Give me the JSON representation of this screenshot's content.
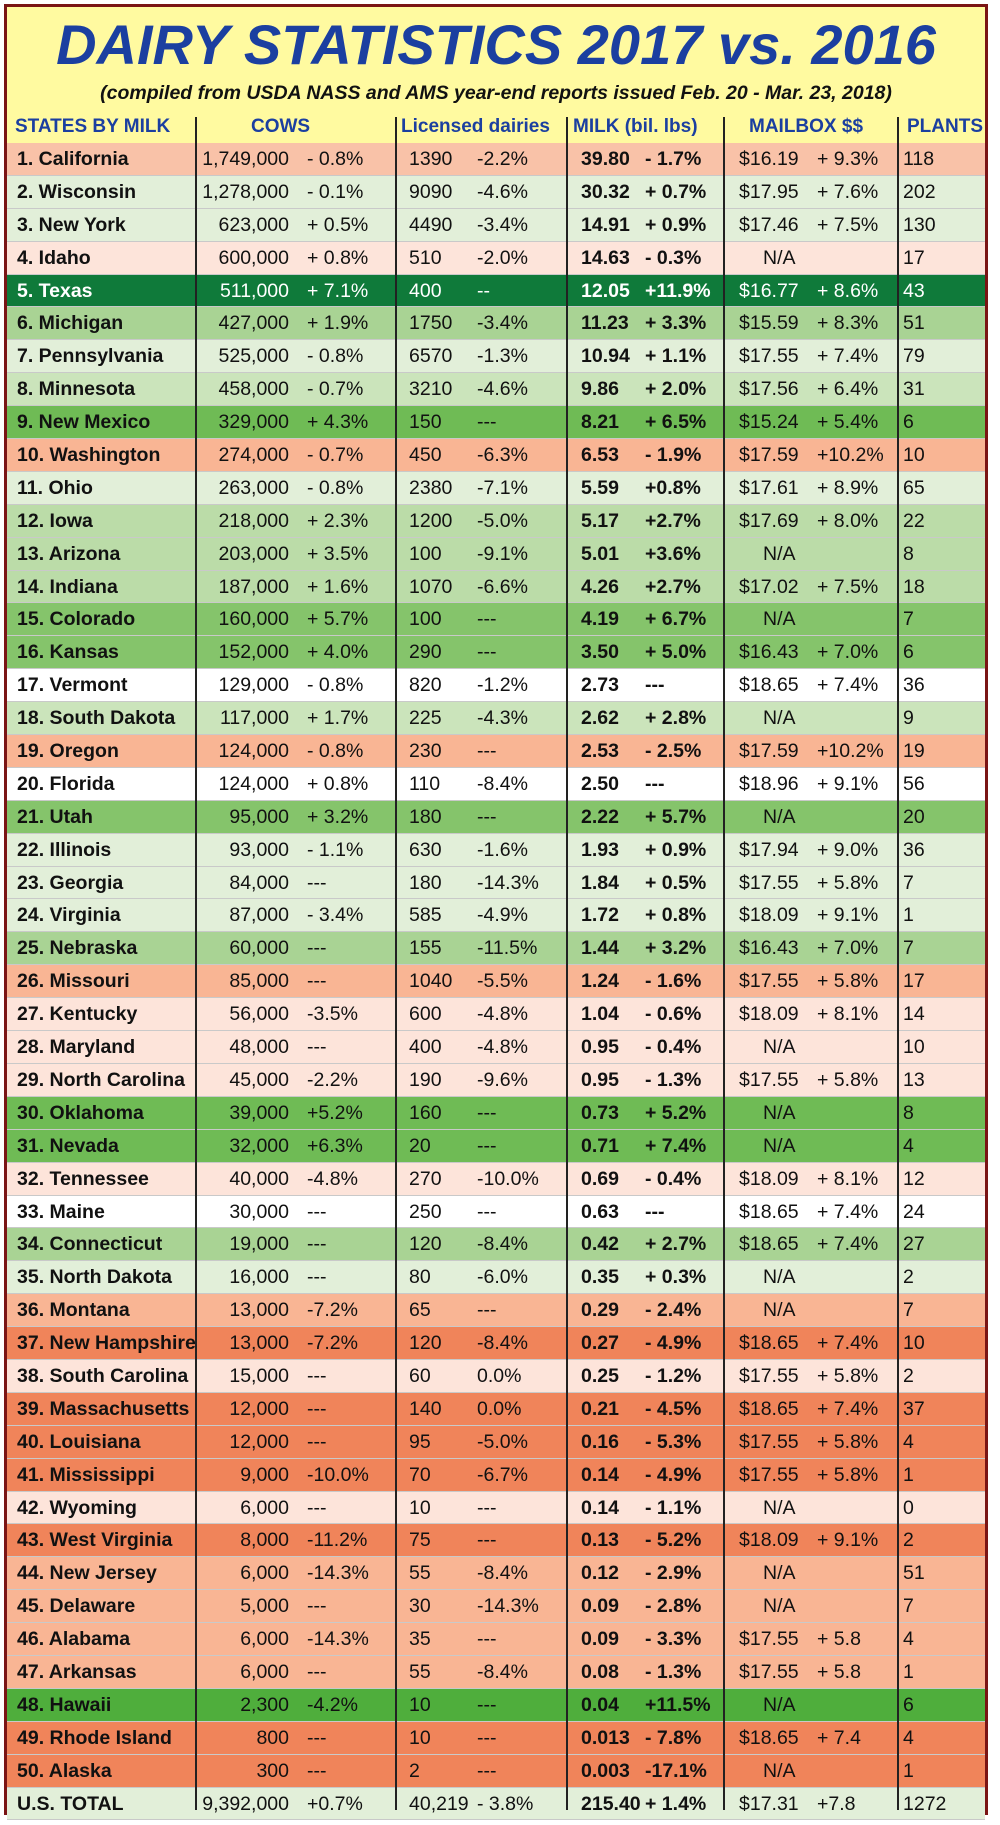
{
  "title": "DAIRY STATISTICS 2017 vs. 2016",
  "subtitle": "(compiled from USDA NASS and AMS year-end reports issued Feb. 20 - Mar. 23, 2018)",
  "headers": {
    "state": "STATES BY MILK",
    "cows": "COWS",
    "licensed": "Licensed dairies",
    "milk": "MILK (bil. lbs)",
    "mailbox": "MAILBOX $$",
    "plants": "PLANTS"
  },
  "colors": {
    "frame_border": "#7a1515",
    "title_blue": "#1b3fa0",
    "background_yellow": "#fffaa0"
  },
  "rows": [
    {
      "state": "1. California",
      "cows": "1,749,000",
      "cows_chg": "- 0.8%",
      "lic": "1390",
      "lic_chg": "-2.2%",
      "milk": "39.80",
      "milk_chg": "- 1.7%",
      "mail": "$16.19",
      "mail_chg": "+ 9.3%",
      "plants": "118",
      "bg": "#f9c2a8"
    },
    {
      "state": "2. Wisconsin",
      "cows": "1,278,000",
      "cows_chg": "- 0.1%",
      "lic": "9090",
      "lic_chg": "-4.6%",
      "milk": "30.32",
      "milk_chg": "+ 0.7%",
      "mail": "$17.95",
      "mail_chg": "+ 7.6%",
      "plants": "202",
      "bg": "#e2efd9"
    },
    {
      "state": "3. New York",
      "cows": "623,000",
      "cows_chg": "+ 0.5%",
      "lic": "4490",
      "lic_chg": "-3.4%",
      "milk": "14.91",
      "milk_chg": "+ 0.9%",
      "mail": "$17.46",
      "mail_chg": "+ 7.5%",
      "plants": "130",
      "bg": "#e2efd9"
    },
    {
      "state": "4. Idaho",
      "cows": "600,000",
      "cows_chg": "+ 0.8%",
      "lic": "510",
      "lic_chg": "-2.0%",
      "milk": "14.63",
      "milk_chg": "- 0.3%",
      "mail": "N/A",
      "mail_chg": "",
      "plants": "17",
      "bg": "#fde4da"
    },
    {
      "state": "5. Texas",
      "cows": "511,000",
      "cows_chg": "+ 7.1%",
      "lic": "400",
      "lic_chg": "--",
      "milk": "12.05",
      "milk_chg": "+11.9%",
      "mail": "$16.77",
      "mail_chg": "+ 8.6%",
      "plants": "43",
      "bg": "#0f7a3a",
      "white": true
    },
    {
      "state": "6. Michigan",
      "cows": "427,000",
      "cows_chg": "+ 1.9%",
      "lic": "1750",
      "lic_chg": "-3.4%",
      "milk": "11.23",
      "milk_chg": "+ 3.3%",
      "mail": "$15.59",
      "mail_chg": "+ 8.3%",
      "plants": "51",
      "bg": "#a9d394"
    },
    {
      "state": "7. Pennsylvania",
      "cows": "525,000",
      "cows_chg": "- 0.8%",
      "lic": "6570",
      "lic_chg": "-1.3%",
      "milk": "10.94",
      "milk_chg": "+ 1.1%",
      "mail": "$17.55",
      "mail_chg": "+ 7.4%",
      "plants": "79",
      "bg": "#e2efd9"
    },
    {
      "state": "8. Minnesota",
      "cows": "458,000",
      "cows_chg": "- 0.7%",
      "lic": "3210",
      "lic_chg": "-4.6%",
      "milk": "9.86",
      "milk_chg": "+ 2.0%",
      "mail": "$17.56",
      "mail_chg": "+ 6.4%",
      "plants": "31",
      "bg": "#cbe4bb"
    },
    {
      "state": "9. New Mexico",
      "cows": "329,000",
      "cows_chg": "+ 4.3%",
      "lic": "150",
      "lic_chg": "---",
      "milk": "8.21",
      "milk_chg": "+ 6.5%",
      "mail": "$15.24",
      "mail_chg": "+ 5.4%",
      "plants": "6",
      "bg": "#6fbb55"
    },
    {
      "state": "10. Washington",
      "cows": "274,000",
      "cows_chg": "- 0.7%",
      "lic": "450",
      "lic_chg": "-6.3%",
      "milk": "6.53",
      "milk_chg": "- 1.9%",
      "mail": "$17.59",
      "mail_chg": "+10.2%",
      "plants": "10",
      "bg": "#f9b594"
    },
    {
      "state": "11. Ohio",
      "cows": "263,000",
      "cows_chg": "- 0.8%",
      "lic": "2380",
      "lic_chg": "-7.1%",
      "milk": "5.59",
      "milk_chg": "+0.8%",
      "mail": "$17.61",
      "mail_chg": "+ 8.9%",
      "plants": "65",
      "bg": "#e2efd9"
    },
    {
      "state": "12. Iowa",
      "cows": "218,000",
      "cows_chg": "+ 2.3%",
      "lic": "1200",
      "lic_chg": "-5.0%",
      "milk": "5.17",
      "milk_chg": "+2.7%",
      "mail": "$17.69",
      "mail_chg": "+ 8.0%",
      "plants": "22",
      "bg": "#bbdca8"
    },
    {
      "state": "13. Arizona",
      "cows": "203,000",
      "cows_chg": "+ 3.5%",
      "lic": "100",
      "lic_chg": "-9.1%",
      "milk": "5.01",
      "milk_chg": "+3.6%",
      "mail": "N/A",
      "mail_chg": "",
      "plants": "8",
      "bg": "#bbdca8"
    },
    {
      "state": "14. Indiana",
      "cows": "187,000",
      "cows_chg": "+ 1.6%",
      "lic": "1070",
      "lic_chg": "-6.6%",
      "milk": "4.26",
      "milk_chg": "+2.7%",
      "mail": "$17.02",
      "mail_chg": "+ 7.5%",
      "plants": "18",
      "bg": "#bbdca8"
    },
    {
      "state": "15. Colorado",
      "cows": "160,000",
      "cows_chg": "+ 5.7%",
      "lic": "100",
      "lic_chg": "---",
      "milk": "4.19",
      "milk_chg": "+ 6.7%",
      "mail": "N/A",
      "mail_chg": "",
      "plants": "7",
      "bg": "#85c46b"
    },
    {
      "state": "16. Kansas",
      "cows": "152,000",
      "cows_chg": "+ 4.0%",
      "lic": "290",
      "lic_chg": "---",
      "milk": "3.50",
      "milk_chg": "+ 5.0%",
      "mail": "$16.43",
      "mail_chg": "+ 7.0%",
      "plants": "6",
      "bg": "#85c46b"
    },
    {
      "state": "17. Vermont",
      "cows": "129,000",
      "cows_chg": "- 0.8%",
      "lic": "820",
      "lic_chg": "-1.2%",
      "milk": "2.73",
      "milk_chg": "---",
      "mail": "$18.65",
      "mail_chg": "+ 7.4%",
      "plants": "36",
      "bg": "#ffffff"
    },
    {
      "state": "18. South Dakota",
      "cows": "117,000",
      "cows_chg": "+ 1.7%",
      "lic": "225",
      "lic_chg": "-4.3%",
      "milk": "2.62",
      "milk_chg": "+ 2.8%",
      "mail": "N/A",
      "mail_chg": "",
      "plants": "9",
      "bg": "#cbe4bb"
    },
    {
      "state": "19. Oregon",
      "cows": "124,000",
      "cows_chg": "- 0.8%",
      "lic": "230",
      "lic_chg": "---",
      "milk": "2.53",
      "milk_chg": "- 2.5%",
      "mail": "$17.59",
      "mail_chg": "+10.2%",
      "plants": "19",
      "bg": "#f9b594"
    },
    {
      "state": "20. Florida",
      "cows": "124,000",
      "cows_chg": "+ 0.8%",
      "lic": "110",
      "lic_chg": "-8.4%",
      "milk": "2.50",
      "milk_chg": "---",
      "mail": "$18.96",
      "mail_chg": "+ 9.1%",
      "plants": "56",
      "bg": "#ffffff"
    },
    {
      "state": "21. Utah",
      "cows": "95,000",
      "cows_chg": "+ 3.2%",
      "lic": "180",
      "lic_chg": "---",
      "milk": "2.22",
      "milk_chg": "+ 5.7%",
      "mail": "N/A",
      "mail_chg": "",
      "plants": "20",
      "bg": "#85c46b"
    },
    {
      "state": "22. Illinois",
      "cows": "93,000",
      "cows_chg": "- 1.1%",
      "lic": "630",
      "lic_chg": "-1.6%",
      "milk": "1.93",
      "milk_chg": "+ 0.9%",
      "mail": "$17.94",
      "mail_chg": "+ 9.0%",
      "plants": "36",
      "bg": "#e2efd9"
    },
    {
      "state": "23. Georgia",
      "cows": "84,000",
      "cows_chg": "---",
      "lic": "180",
      "lic_chg": "-14.3%",
      "milk": "1.84",
      "milk_chg": "+ 0.5%",
      "mail": "$17.55",
      "mail_chg": "+ 5.8%",
      "plants": "7",
      "bg": "#e2efd9"
    },
    {
      "state": "24. Virginia",
      "cows": "87,000",
      "cows_chg": "- 3.4%",
      "lic": "585",
      "lic_chg": "-4.9%",
      "milk": "1.72",
      "milk_chg": "+ 0.8%",
      "mail": "$18.09",
      "mail_chg": "+ 9.1%",
      "plants": "1",
      "bg": "#e2efd9"
    },
    {
      "state": "25. Nebraska",
      "cows": "60,000",
      "cows_chg": "---",
      "lic": "155",
      "lic_chg": "-11.5%",
      "milk": "1.44",
      "milk_chg": "+ 3.2%",
      "mail": "$16.43",
      "mail_chg": "+ 7.0%",
      "plants": "7",
      "bg": "#a9d394"
    },
    {
      "state": "26. Missouri",
      "cows": "85,000",
      "cows_chg": "---",
      "lic": "1040",
      "lic_chg": "-5.5%",
      "milk": "1.24",
      "milk_chg": "- 1.6%",
      "mail": "$17.55",
      "mail_chg": "+ 5.8%",
      "plants": "17",
      "bg": "#f9b594"
    },
    {
      "state": "27. Kentucky",
      "cows": "56,000",
      "cows_chg": "-3.5%",
      "lic": "600",
      "lic_chg": "-4.8%",
      "milk": "1.04",
      "milk_chg": "- 0.6%",
      "mail": "$18.09",
      "mail_chg": "+ 8.1%",
      "plants": "14",
      "bg": "#fde4da"
    },
    {
      "state": "28. Maryland",
      "cows": "48,000",
      "cows_chg": "---",
      "lic": "400",
      "lic_chg": "-4.8%",
      "milk": "0.95",
      "milk_chg": "- 0.4%",
      "mail": "N/A",
      "mail_chg": "",
      "plants": "10",
      "bg": "#fde4da"
    },
    {
      "state": "29. North Carolina",
      "cows": "45,000",
      "cows_chg": "-2.2%",
      "lic": "190",
      "lic_chg": "-9.6%",
      "milk": "0.95",
      "milk_chg": "- 1.3%",
      "mail": "$17.55",
      "mail_chg": "+ 5.8%",
      "plants": "13",
      "bg": "#fde4da"
    },
    {
      "state": "30. Oklahoma",
      "cows": "39,000",
      "cows_chg": "+5.2%",
      "lic": "160",
      "lic_chg": "---",
      "milk": "0.73",
      "milk_chg": "+ 5.2%",
      "mail": "N/A",
      "mail_chg": "",
      "plants": "8",
      "bg": "#6fbb55"
    },
    {
      "state": "31. Nevada",
      "cows": "32,000",
      "cows_chg": "+6.3%",
      "lic": "20",
      "lic_chg": "---",
      "milk": "0.71",
      "milk_chg": "+ 7.4%",
      "mail": "N/A",
      "mail_chg": "",
      "plants": "4",
      "bg": "#6fbb55"
    },
    {
      "state": "32. Tennessee",
      "cows": "40,000",
      "cows_chg": "-4.8%",
      "lic": "270",
      "lic_chg": "-10.0%",
      "milk": "0.69",
      "milk_chg": "- 0.4%",
      "mail": "$18.09",
      "mail_chg": "+ 8.1%",
      "plants": "12",
      "bg": "#fde4da"
    },
    {
      "state": "33. Maine",
      "cows": "30,000",
      "cows_chg": "---",
      "lic": "250",
      "lic_chg": "---",
      "milk": "0.63",
      "milk_chg": "---",
      "mail": "$18.65",
      "mail_chg": "+ 7.4%",
      "plants": "24",
      "bg": "#ffffff"
    },
    {
      "state": "34. Connecticut",
      "cows": "19,000",
      "cows_chg": "---",
      "lic": "120",
      "lic_chg": "-8.4%",
      "milk": "0.42",
      "milk_chg": "+ 2.7%",
      "mail": "$18.65",
      "mail_chg": "+ 7.4%",
      "plants": "27",
      "bg": "#a9d394"
    },
    {
      "state": "35. North Dakota",
      "cows": "16,000",
      "cows_chg": "---",
      "lic": "80",
      "lic_chg": "-6.0%",
      "milk": "0.35",
      "milk_chg": "+ 0.3%",
      "mail": "N/A",
      "mail_chg": "",
      "plants": "2",
      "bg": "#e2efd9"
    },
    {
      "state": "36. Montana",
      "cows": "13,000",
      "cows_chg": "-7.2%",
      "lic": "65",
      "lic_chg": "---",
      "milk": "0.29",
      "milk_chg": "- 2.4%",
      "mail": "N/A",
      "mail_chg": "",
      "plants": "7",
      "bg": "#f9b594"
    },
    {
      "state": "37. New Hampshire",
      "cows": "13,000",
      "cows_chg": "-7.2%",
      "lic": "120",
      "lic_chg": "-8.4%",
      "milk": "0.27",
      "milk_chg": "- 4.9%",
      "mail": "$18.65",
      "mail_chg": "+ 7.4%",
      "plants": "10",
      "bg": "#f0845a"
    },
    {
      "state": "38. South Carolina",
      "cows": "15,000",
      "cows_chg": "---",
      "lic": "60",
      "lic_chg": "0.0%",
      "milk": "0.25",
      "milk_chg": "- 1.2%",
      "mail": "$17.55",
      "mail_chg": "+ 5.8%",
      "plants": "2",
      "bg": "#fde4da"
    },
    {
      "state": "39. Massachusetts",
      "cows": "12,000",
      "cows_chg": "---",
      "lic": "140",
      "lic_chg": "0.0%",
      "milk": "0.21",
      "milk_chg": "- 4.5%",
      "mail": "$18.65",
      "mail_chg": "+ 7.4%",
      "plants": "37",
      "bg": "#f0845a"
    },
    {
      "state": "40. Louisiana",
      "cows": "12,000",
      "cows_chg": "---",
      "lic": "95",
      "lic_chg": "-5.0%",
      "milk": "0.16",
      "milk_chg": "- 5.3%",
      "mail": "$17.55",
      "mail_chg": "+ 5.8%",
      "plants": "4",
      "bg": "#f0845a"
    },
    {
      "state": "41. Mississippi",
      "cows": "9,000",
      "cows_chg": "-10.0%",
      "lic": "70",
      "lic_chg": "-6.7%",
      "milk": "0.14",
      "milk_chg": "- 4.9%",
      "mail": "$17.55",
      "mail_chg": "+ 5.8%",
      "plants": "1",
      "bg": "#f0845a"
    },
    {
      "state": "42. Wyoming",
      "cows": "6,000",
      "cows_chg": "---",
      "lic": "10",
      "lic_chg": "---",
      "milk": "0.14",
      "milk_chg": "- 1.1%",
      "mail": "N/A",
      "mail_chg": "",
      "plants": "0",
      "bg": "#fde4da"
    },
    {
      "state": "43. West Virginia",
      "cows": "8,000",
      "cows_chg": "-11.2%",
      "lic": "75",
      "lic_chg": "---",
      "milk": "0.13",
      "milk_chg": "- 5.2%",
      "mail": "$18.09",
      "mail_chg": "+ 9.1%",
      "plants": "2",
      "bg": "#f0845a"
    },
    {
      "state": "44. New Jersey",
      "cows": "6,000",
      "cows_chg": "-14.3%",
      "lic": "55",
      "lic_chg": "-8.4%",
      "milk": "0.12",
      "milk_chg": "- 2.9%",
      "mail": "N/A",
      "mail_chg": "",
      "plants": "51",
      "bg": "#f9b594"
    },
    {
      "state": "45. Delaware",
      "cows": "5,000",
      "cows_chg": "---",
      "lic": "30",
      "lic_chg": "-14.3%",
      "milk": "0.09",
      "milk_chg": "- 2.8%",
      "mail": "N/A",
      "mail_chg": "",
      "plants": "7",
      "bg": "#f9b594"
    },
    {
      "state": "46. Alabama",
      "cows": "6,000",
      "cows_chg": "-14.3%",
      "lic": "35",
      "lic_chg": "---",
      "milk": "0.09",
      "milk_chg": "- 3.3%",
      "mail": "$17.55",
      "mail_chg": "+ 5.8",
      "plants": "4",
      "bg": "#f9b594"
    },
    {
      "state": "47. Arkansas",
      "cows": "6,000",
      "cows_chg": "---",
      "lic": "55",
      "lic_chg": "-8.4%",
      "milk": "0.08",
      "milk_chg": "- 1.3%",
      "mail": "$17.55",
      "mail_chg": "+ 5.8",
      "plants": "1",
      "bg": "#f9b594"
    },
    {
      "state": "48. Hawaii",
      "cows": "2,300",
      "cows_chg": "-4.2%",
      "lic": "10",
      "lic_chg": "---",
      "milk": "0.04",
      "milk_chg": "+11.5%",
      "mail": "N/A",
      "mail_chg": "",
      "plants": "6",
      "bg": "#4fae3c"
    },
    {
      "state": "49. Rhode Island",
      "cows": "800",
      "cows_chg": "---",
      "lic": "10",
      "lic_chg": "---",
      "milk": "0.013",
      "milk_chg": "- 7.8%",
      "mail": "$18.65",
      "mail_chg": "+ 7.4",
      "plants": "4",
      "bg": "#f0845a"
    },
    {
      "state": "50. Alaska",
      "cows": "300",
      "cows_chg": "---",
      "lic": "2",
      "lic_chg": "---",
      "milk": "0.003",
      "milk_chg": "-17.1%",
      "mail": "N/A",
      "mail_chg": "",
      "plants": "1",
      "bg": "#f0845a"
    }
  ],
  "total": {
    "state": "U.S. TOTAL",
    "cows": "9,392,000",
    "cows_chg": "+0.7%",
    "lic": "40,219",
    "lic_chg": "- 3.8%",
    "milk": "215.40",
    "milk_chg": "+ 1.4%",
    "mail": "$17.31",
    "mail_chg": "+7.8",
    "plants": "1272",
    "bg": "#e2efd9"
  }
}
